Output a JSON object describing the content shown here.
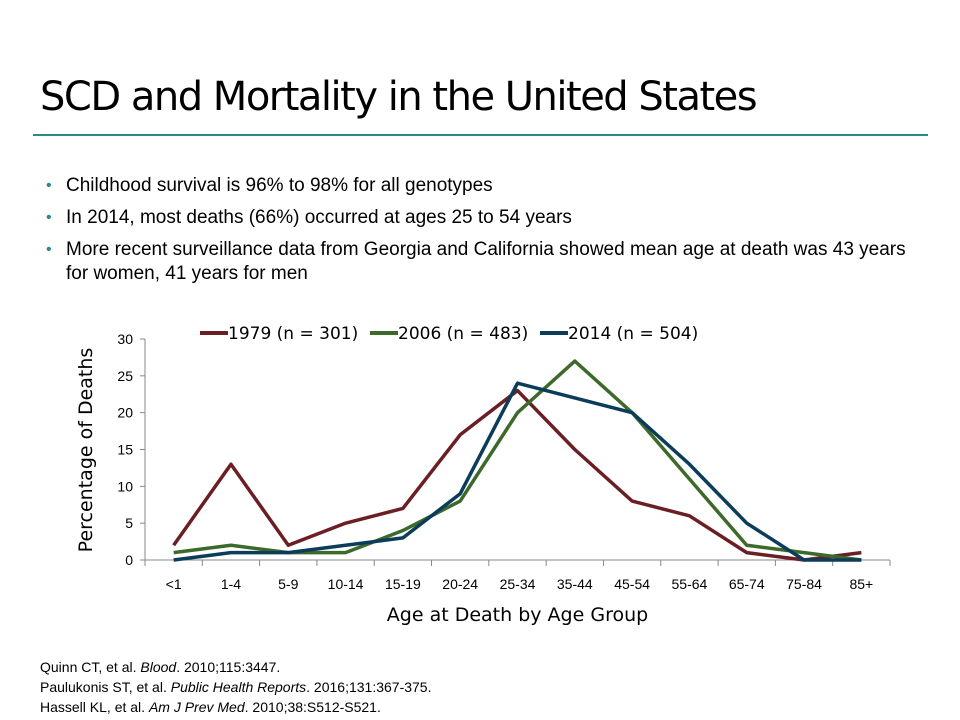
{
  "slide": {
    "title": "SCD and Mortality in the United States",
    "bullets": [
      "Childhood survival is 96% to 98% for all genotypes",
      "In 2014, most deaths (66%) occurred at ages 25 to 54 years",
      "More recent surveillance data from Georgia and California showed mean age at death was 43 years for women, 41 years for men"
    ],
    "references": [
      {
        "pre": "Quinn CT, et al. ",
        "journal": "Blood",
        "post": ". 2010;115:3447."
      },
      {
        "pre": "Paulukonis ST, et al. ",
        "journal": "Public Health Reports",
        "post": ". 2016;131:367-375."
      },
      {
        "pre": "Hassell KL, et al. ",
        "journal": "Am J Prev Med",
        "post": ". 2010;38:S512-S521."
      }
    ],
    "accent_color": "#2a8a8a"
  },
  "chart_data": {
    "type": "line",
    "xlabel": "Age at Death by Age Group",
    "ylabel": "Percentage of Deaths",
    "ylim": [
      0,
      30
    ],
    "yticks": [
      0,
      5,
      10,
      15,
      20,
      25,
      30
    ],
    "categories": [
      "<1",
      "1-4",
      "5-9",
      "10-14",
      "15-19",
      "20-24",
      "25-34",
      "35-44",
      "45-54",
      "55-64",
      "65-74",
      "75-84",
      "85+"
    ],
    "legend_position": "top",
    "grid": false,
    "series": [
      {
        "name": "1979 (n = 301)",
        "color": "#6b1f24",
        "values": [
          2,
          13,
          2,
          5,
          7,
          17,
          23,
          15,
          8,
          6,
          1,
          0,
          1
        ]
      },
      {
        "name": "2006 (n = 483)",
        "color": "#3d6a2a",
        "values": [
          1,
          2,
          1,
          1,
          4,
          8,
          20,
          27,
          20,
          11,
          2,
          1,
          0
        ]
      },
      {
        "name": "2014 (n = 504)",
        "color": "#0b3d5a",
        "values": [
          0,
          1,
          1,
          2,
          3,
          9,
          24,
          22,
          20,
          13,
          5,
          0,
          0
        ]
      }
    ]
  }
}
